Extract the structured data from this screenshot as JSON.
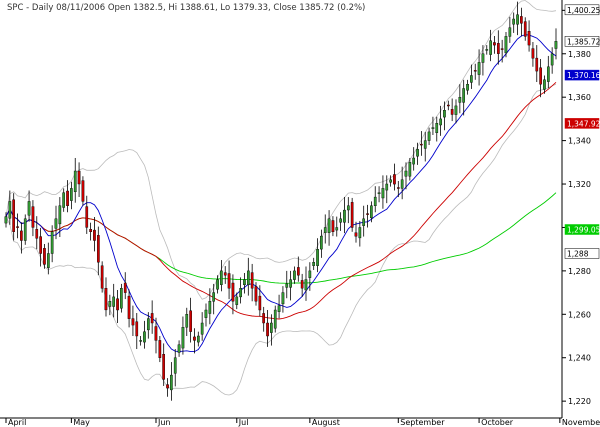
{
  "chart_data": {
    "type": "candlestick",
    "symbol": "SPC",
    "title": "SPC - Daily 08/11/2006 Open 1382.5, Hi 1388.61, Lo 1379.33, Close 1385.72 (0.2%)",
    "ylim": [
      1215,
      1402
    ],
    "grid": false,
    "y_ticks": [
      1220,
      1240,
      1260,
      1280,
      1300,
      1320,
      1340,
      1360,
      1380,
      1400
    ],
    "y_tick_labels": [
      "1,220",
      "1,240",
      "1,260",
      "1,280",
      "1,300",
      "1,320",
      "1,340",
      "1,360",
      "1,380",
      "1,400"
    ],
    "month_labels": [
      {
        "label": "April",
        "index": 0
      },
      {
        "label": "May",
        "index": 17
      },
      {
        "label": "Jun",
        "index": 39
      },
      {
        "label": "Jul",
        "index": 60
      },
      {
        "label": "August",
        "index": 79
      },
      {
        "label": "September",
        "index": 102
      },
      {
        "label": "October",
        "index": 123
      },
      {
        "label": "November",
        "index": 144
      }
    ],
    "price_tags": [
      {
        "label": "1,400.25",
        "value": 1400.25,
        "color": "#ffffff",
        "text_color": "#000000"
      },
      {
        "label": "1,385.72",
        "value": 1385.72,
        "color": "#ffffff",
        "text_color": "#000000"
      },
      {
        "label": "1,370.16",
        "value": 1370.16,
        "color": "#0000cc",
        "text_color": "#ffffff"
      },
      {
        "label": "1,347.92",
        "value": 1347.92,
        "color": "#cc0000",
        "text_color": "#ffffff"
      },
      {
        "label": "1,299.05",
        "value": 1299.05,
        "color": "#00cc00",
        "text_color": "#ffffff"
      },
      {
        "label": "1,288",
        "value": 1288,
        "color": "#ffffff",
        "text_color": "#000000"
      }
    ],
    "colors": {
      "up": "#339933",
      "down": "#cc0000",
      "ma_short": "#0000cc",
      "ma_mid": "#cc0000",
      "ma_long": "#00cc00",
      "band": "#bbbbbb"
    },
    "closes": [
      1305,
      1312,
      1298,
      1300,
      1294,
      1304,
      1312,
      1300,
      1295,
      1288,
      1283,
      1288,
      1298,
      1304,
      1310,
      1316,
      1310,
      1318,
      1326,
      1320,
      1312,
      1300,
      1298,
      1294,
      1284,
      1272,
      1262,
      1266,
      1268,
      1262,
      1272,
      1270,
      1258,
      1255,
      1250,
      1248,
      1252,
      1258,
      1256,
      1248,
      1240,
      1230,
      1226,
      1232,
      1240,
      1246,
      1254,
      1260,
      1252,
      1248,
      1250,
      1256,
      1262,
      1266,
      1270,
      1276,
      1280,
      1278,
      1272,
      1266,
      1268,
      1272,
      1276,
      1280,
      1272,
      1266,
      1262,
      1256,
      1250,
      1256,
      1262,
      1264,
      1270,
      1274,
      1276,
      1280,
      1278,
      1272,
      1276,
      1280,
      1284,
      1290,
      1296,
      1300,
      1304,
      1298,
      1300,
      1304,
      1308,
      1310,
      1300,
      1296,
      1300,
      1304,
      1306,
      1310,
      1314,
      1316,
      1318,
      1320,
      1322,
      1320,
      1318,
      1322,
      1326,
      1330,
      1332,
      1336,
      1338,
      1340,
      1344,
      1346,
      1348,
      1350,
      1354,
      1356,
      1352,
      1356,
      1360,
      1364,
      1366,
      1370,
      1372,
      1376,
      1380,
      1382,
      1386,
      1384,
      1380,
      1382,
      1388,
      1392,
      1396,
      1398,
      1394,
      1388,
      1384,
      1378,
      1372,
      1366,
      1368,
      1374,
      1380,
      1385.72
    ]
  }
}
